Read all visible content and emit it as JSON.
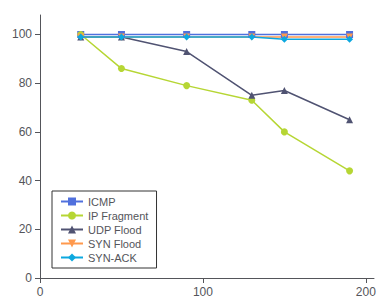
{
  "chart_data": {
    "type": "line",
    "x": [
      25,
      50,
      90,
      130,
      150,
      190
    ],
    "series": [
      {
        "name": "ICMP",
        "values": [
          100,
          100,
          100,
          100,
          100,
          100
        ],
        "marker": "square"
      },
      {
        "name": "IP Fragment",
        "values": [
          100,
          86,
          79,
          73,
          60,
          44
        ],
        "marker": "circle"
      },
      {
        "name": "UDP Flood",
        "values": [
          99,
          99,
          93,
          75,
          77,
          65
        ],
        "marker": "triangle_up"
      },
      {
        "name": "SYN Flood",
        "values": [
          99,
          99,
          99,
          99,
          99,
          99
        ],
        "marker": "triangle_down"
      },
      {
        "name": "SYN-ACK",
        "values": [
          99,
          99,
          99,
          99,
          98,
          98
        ],
        "marker": "diamond"
      }
    ],
    "xlim": [
      0,
      205
    ],
    "xticks": [
      0,
      100,
      200
    ],
    "ylim": [
      0,
      108
    ],
    "yticks": [
      0,
      20,
      40,
      60,
      80,
      100
    ],
    "grid": false,
    "legend": "lower left"
  }
}
